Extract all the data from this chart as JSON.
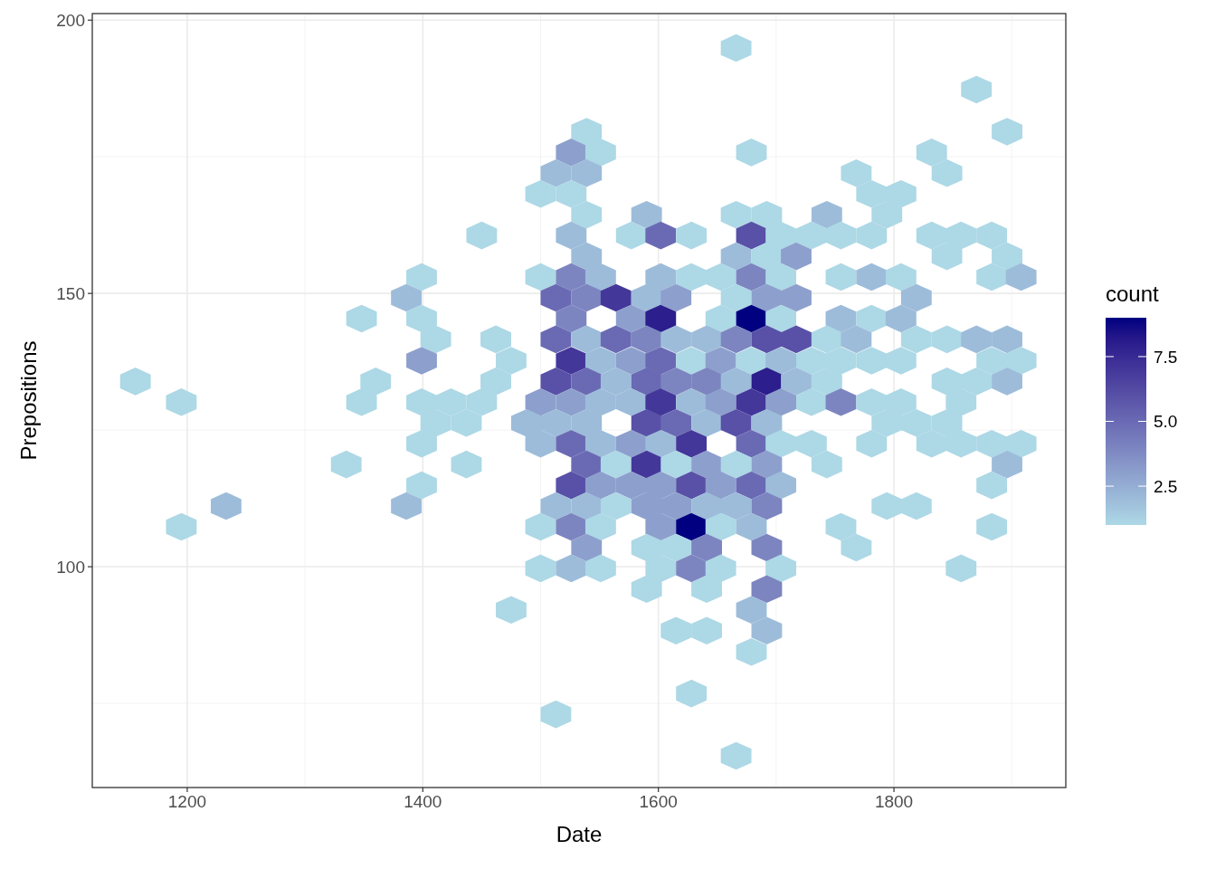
{
  "chart_data": {
    "type": "scatter",
    "xlabel": "Date",
    "ylabel": "Prepositions",
    "clabel": "count",
    "xlim": [
      1119.4,
      1945.9
    ],
    "ylim": [
      59.6,
      201.2
    ],
    "xticks": [
      1200,
      1400,
      1600,
      1800
    ],
    "yticks": [
      100,
      150,
      200
    ],
    "grid": true,
    "clim": [
      1,
      9
    ],
    "cticks": [
      {
        "value": 2.5,
        "label": "2.5"
      },
      {
        "value": 5,
        "label": "5.0"
      },
      {
        "value": 7.5,
        "label": "7.5"
      }
    ],
    "x": [
      1666,
      1870,
      1539,
      1896,
      1526,
      1551,
      1679,
      1832,
      1513,
      1539,
      1768,
      1845,
      1500,
      1526,
      1781,
      1806,
      1539,
      1590,
      1666,
      1692,
      1743,
      1794,
      1450,
      1526,
      1577,
      1602,
      1628,
      1679,
      1704,
      1730,
      1755,
      1781,
      1832,
      1857,
      1883,
      1539,
      1666,
      1692,
      1717,
      1845,
      1896,
      1399,
      1500,
      1526,
      1551,
      1602,
      1628,
      1653,
      1679,
      1704,
      1755,
      1781,
      1806,
      1883,
      1908,
      1386,
      1513,
      1539,
      1564,
      1590,
      1615,
      1666,
      1692,
      1717,
      1819,
      1348,
      1399,
      1526,
      1577,
      1602,
      1653,
      1679,
      1704,
      1755,
      1781,
      1806,
      1411,
      1462,
      1513,
      1539,
      1564,
      1590,
      1615,
      1641,
      1666,
      1692,
      1717,
      1743,
      1768,
      1819,
      1845,
      1870,
      1896,
      1399,
      1475,
      1526,
      1551,
      1577,
      1602,
      1628,
      1653,
      1679,
      1704,
      1730,
      1755,
      1781,
      1806,
      1883,
      1908,
      1156,
      1360,
      1462,
      1513,
      1539,
      1564,
      1590,
      1615,
      1641,
      1666,
      1692,
      1717,
      1743,
      1845,
      1870,
      1896,
      1195,
      1348,
      1399,
      1424,
      1450,
      1500,
      1526,
      1551,
      1577,
      1602,
      1628,
      1653,
      1679,
      1704,
      1730,
      1755,
      1781,
      1806,
      1857,
      1411,
      1437,
      1488,
      1513,
      1539,
      1590,
      1615,
      1641,
      1666,
      1692,
      1794,
      1819,
      1845,
      1399,
      1500,
      1526,
      1551,
      1577,
      1602,
      1628,
      1679,
      1704,
      1730,
      1781,
      1832,
      1857,
      1883,
      1908,
      1335,
      1437,
      1539,
      1564,
      1590,
      1615,
      1641,
      1666,
      1692,
      1743,
      1896,
      1399,
      1526,
      1551,
      1577,
      1602,
      1628,
      1653,
      1679,
      1704,
      1883,
      1233,
      1386,
      1513,
      1539,
      1564,
      1590,
      1615,
      1641,
      1666,
      1692,
      1794,
      1819,
      1195,
      1500,
      1526,
      1551,
      1602,
      1628,
      1653,
      1679,
      1755,
      1883,
      1539,
      1590,
      1615,
      1641,
      1692,
      1768,
      1500,
      1526,
      1551,
      1602,
      1628,
      1653,
      1704,
      1857,
      1590,
      1641,
      1692,
      1475,
      1679,
      1615,
      1641,
      1692,
      1679,
      1628,
      1513,
      1666
    ],
    "values": [
      194.9,
      187.3,
      179.6,
      179.6,
      175.8,
      175.8,
      175.8,
      175.8,
      172.0,
      172.0,
      172.0,
      172.0,
      168.2,
      168.2,
      168.2,
      168.2,
      164.4,
      164.4,
      164.4,
      164.4,
      164.4,
      164.4,
      160.6,
      160.6,
      160.6,
      160.6,
      160.6,
      160.6,
      160.6,
      160.6,
      160.6,
      160.6,
      160.6,
      160.6,
      160.6,
      156.8,
      156.8,
      156.8,
      156.8,
      156.8,
      156.8,
      153.0,
      153.0,
      153.0,
      153.0,
      153.0,
      153.0,
      153.0,
      153.0,
      153.0,
      153.0,
      153.0,
      153.0,
      153.0,
      153.0,
      149.2,
      149.2,
      149.2,
      149.2,
      149.2,
      149.2,
      149.2,
      149.2,
      149.2,
      149.2,
      145.4,
      145.4,
      145.4,
      145.4,
      145.4,
      145.4,
      145.4,
      145.4,
      145.4,
      145.4,
      145.4,
      141.6,
      141.6,
      141.6,
      141.6,
      141.6,
      141.6,
      141.6,
      141.6,
      141.6,
      141.6,
      141.6,
      141.6,
      141.6,
      141.6,
      141.6,
      141.6,
      141.6,
      137.7,
      137.7,
      137.7,
      137.7,
      137.7,
      137.7,
      137.7,
      137.7,
      137.7,
      137.7,
      137.7,
      137.7,
      137.7,
      137.7,
      137.7,
      137.7,
      133.9,
      133.9,
      133.9,
      133.9,
      133.9,
      133.9,
      133.9,
      133.9,
      133.9,
      133.9,
      133.9,
      133.9,
      133.9,
      133.9,
      133.9,
      133.9,
      130.1,
      130.1,
      130.1,
      130.1,
      130.1,
      130.1,
      130.1,
      130.1,
      130.1,
      130.1,
      130.1,
      130.1,
      130.1,
      130.1,
      130.1,
      130.1,
      130.1,
      130.1,
      130.1,
      126.3,
      126.3,
      126.3,
      126.3,
      126.3,
      126.3,
      126.3,
      126.3,
      126.3,
      126.3,
      126.3,
      126.3,
      126.3,
      122.5,
      122.5,
      122.5,
      122.5,
      122.5,
      122.5,
      122.5,
      122.5,
      122.5,
      122.5,
      122.5,
      122.5,
      122.5,
      122.5,
      122.5,
      118.7,
      118.7,
      118.7,
      118.7,
      118.7,
      118.7,
      118.7,
      118.7,
      118.7,
      118.7,
      118.7,
      114.9,
      114.9,
      114.9,
      114.9,
      114.9,
      114.9,
      114.9,
      114.9,
      114.9,
      114.9,
      111.1,
      111.1,
      111.1,
      111.1,
      111.1,
      111.1,
      111.1,
      111.1,
      111.1,
      111.1,
      111.1,
      111.1,
      107.3,
      107.3,
      107.3,
      107.3,
      107.3,
      107.3,
      107.3,
      107.3,
      107.3,
      107.3,
      103.5,
      103.5,
      103.5,
      103.5,
      103.5,
      103.5,
      99.7,
      99.7,
      99.7,
      99.7,
      99.7,
      99.7,
      99.7,
      99.7,
      95.9,
      95.9,
      95.9,
      92.1,
      92.1,
      88.3,
      88.3,
      88.3,
      84.4,
      76.8,
      73.0,
      65.4
    ],
    "cvalues": [
      1,
      1,
      1,
      1,
      3,
      1,
      1,
      1,
      2,
      2,
      1,
      1,
      1,
      1,
      1,
      1,
      1,
      2,
      1,
      1,
      2,
      1,
      1,
      2,
      1,
      5,
      1,
      6,
      1,
      1,
      1,
      1,
      1,
      1,
      1,
      2,
      2,
      1,
      3,
      1,
      1,
      1,
      1,
      4,
      2,
      2,
      1,
      1,
      4,
      1,
      1,
      2,
      1,
      1,
      2,
      2,
      5,
      4,
      7,
      2,
      3,
      1,
      3,
      3,
      2,
      1,
      1,
      4,
      3,
      8,
      1,
      9,
      1,
      2,
      1,
      2,
      1,
      1,
      5,
      2,
      5,
      4,
      2,
      2,
      4,
      6,
      6,
      1,
      2,
      1,
      1,
      2,
      2,
      3,
      1,
      7,
      2,
      3,
      5,
      1,
      3,
      1,
      2,
      1,
      1,
      1,
      1,
      1,
      1,
      1,
      1,
      1,
      6,
      5,
      2,
      5,
      4,
      4,
      2,
      8,
      2,
      1,
      1,
      1,
      2,
      1,
      1,
      1,
      1,
      1,
      3,
      3,
      2,
      2,
      7,
      2,
      3,
      7,
      3,
      1,
      4,
      1,
      1,
      1,
      1,
      1,
      2,
      2,
      2,
      6,
      5,
      2,
      6,
      2,
      1,
      1,
      1,
      1,
      2,
      5,
      2,
      3,
      2,
      7,
      5,
      1,
      1,
      1,
      1,
      1,
      1,
      1,
      1,
      1,
      5,
      1,
      7,
      1,
      3,
      1,
      3,
      1,
      2,
      1,
      6,
      3,
      3,
      3,
      6,
      3,
      5,
      2,
      1,
      2,
      2,
      2,
      2,
      1,
      3,
      3,
      2,
      2,
      4,
      1,
      1,
      1,
      1,
      4,
      1,
      3,
      9,
      1,
      2,
      1,
      1,
      3,
      1,
      1,
      4,
      4,
      1,
      1,
      2,
      1,
      1,
      4,
      1,
      1,
      1,
      1,
      1,
      4,
      1,
      2,
      1,
      1,
      2,
      1,
      1,
      1,
      1
    ]
  }
}
